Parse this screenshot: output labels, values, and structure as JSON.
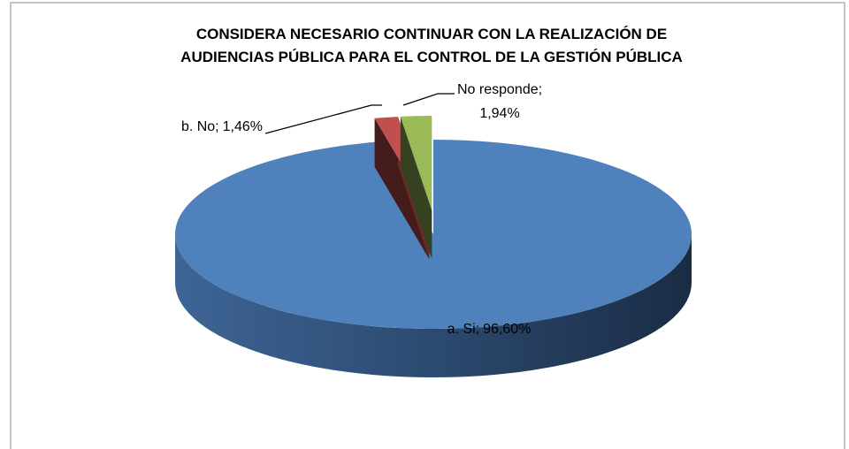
{
  "chart_data": {
    "type": "pie3d",
    "title": [
      "CONSIDERA NECESARIO CONTINUAR CON LA REALIZACIÓN DE",
      "AUDIENCIAS PÚBLICA PARA EL CONTROL DE LA GESTIÓN PÚBLICA"
    ],
    "categories": [
      "a. Si;",
      "b. No;",
      "No responde;"
    ],
    "values": [
      96.6,
      1.46,
      1.94
    ],
    "value_labels": [
      "96,60%",
      "1,46%",
      "1,94%"
    ],
    "colors": [
      "#4f81bd",
      "#c0504d",
      "#9bbb59"
    ]
  }
}
